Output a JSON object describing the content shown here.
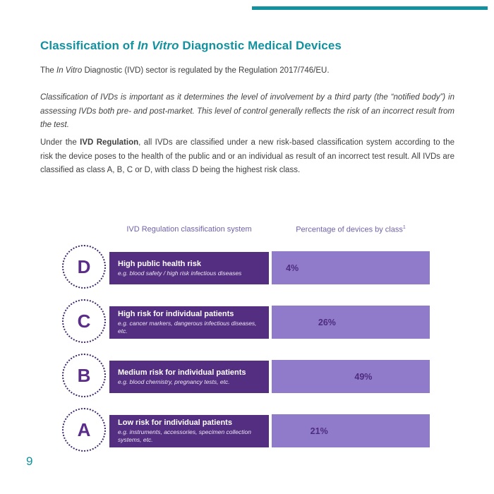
{
  "title": {
    "prefix": "Classification of ",
    "italic": "In Vitro",
    "suffix": " Diagnostic Medical Devices"
  },
  "paragraphs": {
    "p1_prefix": "The ",
    "p1_italic": "In Vitro",
    "p1_suffix": " Diagnostic (IVD) sector is regulated by the Regulation 2017/746/EU.",
    "p2": "Classification of IVDs is important as it determines the level of involvement by a third party (the “notified body”) in assessing IVDs both pre- and post-market. This level of control generally reflects the risk of an incorrect result from the test.",
    "p3_prefix": "Under the ",
    "p3_bold": "IVD Regulation",
    "p3_suffix": ", all IVDs are classified under a new risk-based classification system according to the risk the device poses to the health of the public and or an individual as result of an incorrect test result. All IVDs are classified as class A, B, C or D, with class D being the highest risk class."
  },
  "diagram": {
    "left_header": "IVD Regulation classification system",
    "right_header": "Percentage of devices by class",
    "right_header_footnote": "1",
    "rows": [
      {
        "letter": "D",
        "risk_title": "High public health risk",
        "risk_examples": "e.g. blood safety / high risk infectious diseases",
        "percent_label": "4%",
        "percent_value": 4
      },
      {
        "letter": "C",
        "risk_title": "High risk for individual patients",
        "risk_examples": "e.g. cancer markers, dangerous infectious diseases, etc.",
        "percent_label": "26%",
        "percent_value": 26
      },
      {
        "letter": "B",
        "risk_title": "Medium risk for individual patients",
        "risk_examples": "e.g. blood chemistry, pregnancy tests, etc.",
        "percent_label": "49%",
        "percent_value": 49
      },
      {
        "letter": "A",
        "risk_title": "Low risk for individual patients",
        "risk_examples": "e.g. instruments, accessories, specimen collection systems, etc.",
        "percent_label": "21%",
        "percent_value": 21
      }
    ]
  },
  "page": {
    "number": "9"
  },
  "colors": {
    "accent_teal": "#13919f",
    "purple_dark": "#542e80",
    "purple_light": "#8f7bc9",
    "purple_header_text": "#7162a8",
    "purple_label_text": "#4e2b7e",
    "body_text": "#3f3f3f"
  },
  "chart_data": {
    "type": "bar",
    "orientation": "horizontal",
    "title": "Percentage of devices by class",
    "subtitle": "IVD Regulation classification system",
    "categories": [
      "D",
      "C",
      "B",
      "A"
    ],
    "values": [
      4,
      26,
      49,
      21
    ],
    "unit": "%",
    "category_descriptions": [
      "High public health risk — e.g. blood safety / high risk infectious diseases",
      "High risk for individual patients — e.g. cancer markers, dangerous infectious diseases, etc.",
      "Medium risk for individual patients — e.g. blood chemistry, pregnancy tests, etc.",
      "Low risk for individual patients — e.g. instruments, accessories, specimen collection systems, etc."
    ],
    "data_labels": [
      "4%",
      "26%",
      "49%",
      "21%"
    ],
    "legend": "none",
    "grid": false
  }
}
